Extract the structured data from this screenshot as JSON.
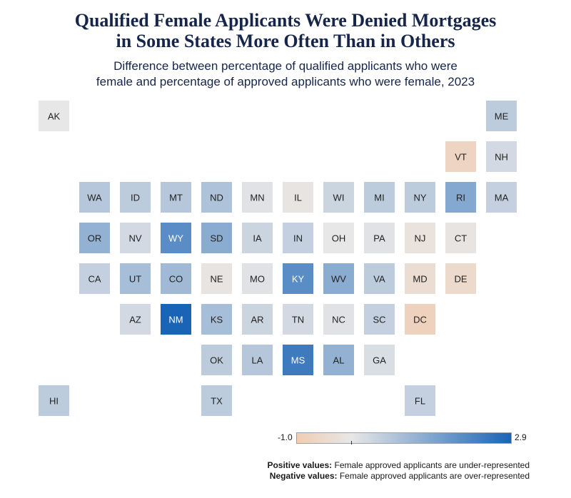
{
  "title": "Qualified Female Applicants Were Denied Mortgages\nin Some States More Often Than in Others",
  "subtitle": "Difference between percentage of qualified applicants who were\nfemale and percentage of approved applicants who were female, 2023",
  "legend": {
    "min_label": "-1.0",
    "max_label": "2.9",
    "colors": {
      "negative": "#f1cdb3",
      "neutral": "#e7e7e7",
      "positive": "#1a64b6"
    }
  },
  "notes": {
    "positive_label": "Positive values:",
    "positive_text": "Female approved applicants are under-represented",
    "negative_label": "Negative values:",
    "negative_text": "Female approved applicants are over-represented"
  },
  "chart_data": {
    "type": "heatmap",
    "value_range": [
      -1.0,
      2.9
    ],
    "tiles": [
      {
        "state": "AK",
        "col": 0,
        "row": 0,
        "value": 0.0
      },
      {
        "state": "ME",
        "col": 11,
        "row": 0,
        "value": 0.6
      },
      {
        "state": "VT",
        "col": 10,
        "row": 1,
        "value": -0.7
      },
      {
        "state": "NH",
        "col": 11,
        "row": 1,
        "value": 0.3
      },
      {
        "state": "WA",
        "col": 1,
        "row": 2,
        "value": 0.7
      },
      {
        "state": "ID",
        "col": 2,
        "row": 2,
        "value": 0.6
      },
      {
        "state": "MT",
        "col": 3,
        "row": 2,
        "value": 0.7
      },
      {
        "state": "ND",
        "col": 4,
        "row": 2,
        "value": 0.8
      },
      {
        "state": "MN",
        "col": 5,
        "row": 2,
        "value": 0.1
      },
      {
        "state": "IL",
        "col": 6,
        "row": 2,
        "value": -0.1
      },
      {
        "state": "WI",
        "col": 7,
        "row": 2,
        "value": 0.4
      },
      {
        "state": "MI",
        "col": 8,
        "row": 2,
        "value": 0.6
      },
      {
        "state": "NY",
        "col": 9,
        "row": 2,
        "value": 0.6
      },
      {
        "state": "RI",
        "col": 10,
        "row": 2,
        "value": 1.4
      },
      {
        "state": "MA",
        "col": 11,
        "row": 2,
        "value": 0.5
      },
      {
        "state": "OR",
        "col": 1,
        "row": 3,
        "value": 1.2
      },
      {
        "state": "NV",
        "col": 2,
        "row": 3,
        "value": 0.3
      },
      {
        "state": "WY",
        "col": 3,
        "row": 3,
        "value": 2.0
      },
      {
        "state": "SD",
        "col": 4,
        "row": 3,
        "value": 1.3
      },
      {
        "state": "IA",
        "col": 5,
        "row": 3,
        "value": 0.4
      },
      {
        "state": "IN",
        "col": 6,
        "row": 3,
        "value": 0.5
      },
      {
        "state": "OH",
        "col": 7,
        "row": 3,
        "value": 0.0
      },
      {
        "state": "PA",
        "col": 8,
        "row": 3,
        "value": 0.1
      },
      {
        "state": "NJ",
        "col": 9,
        "row": 3,
        "value": -0.2
      },
      {
        "state": "CT",
        "col": 10,
        "row": 3,
        "value": -0.1
      },
      {
        "state": "CA",
        "col": 1,
        "row": 4,
        "value": 0.5
      },
      {
        "state": "UT",
        "col": 2,
        "row": 4,
        "value": 0.9
      },
      {
        "state": "CO",
        "col": 3,
        "row": 4,
        "value": 1.0
      },
      {
        "state": "NE",
        "col": 4,
        "row": 4,
        "value": -0.1
      },
      {
        "state": "MO",
        "col": 5,
        "row": 4,
        "value": 0.1
      },
      {
        "state": "KY",
        "col": 6,
        "row": 4,
        "value": 2.0
      },
      {
        "state": "WV",
        "col": 7,
        "row": 4,
        "value": 1.3
      },
      {
        "state": "VA",
        "col": 8,
        "row": 4,
        "value": 0.6
      },
      {
        "state": "MD",
        "col": 9,
        "row": 4,
        "value": -0.4
      },
      {
        "state": "DE",
        "col": 10,
        "row": 4,
        "value": -0.5
      },
      {
        "state": "AZ",
        "col": 2,
        "row": 5,
        "value": 0.3
      },
      {
        "state": "NM",
        "col": 3,
        "row": 5,
        "value": 2.9
      },
      {
        "state": "KS",
        "col": 4,
        "row": 5,
        "value": 0.9
      },
      {
        "state": "AR",
        "col": 5,
        "row": 5,
        "value": 0.4
      },
      {
        "state": "TN",
        "col": 6,
        "row": 5,
        "value": 0.3
      },
      {
        "state": "NC",
        "col": 7,
        "row": 5,
        "value": 0.1
      },
      {
        "state": "SC",
        "col": 8,
        "row": 5,
        "value": 0.5
      },
      {
        "state": "DC",
        "col": 9,
        "row": 5,
        "value": -0.8
      },
      {
        "state": "OK",
        "col": 4,
        "row": 6,
        "value": 0.6
      },
      {
        "state": "LA",
        "col": 5,
        "row": 6,
        "value": 0.7
      },
      {
        "state": "MS",
        "col": 6,
        "row": 6,
        "value": 2.4
      },
      {
        "state": "AL",
        "col": 7,
        "row": 6,
        "value": 1.2
      },
      {
        "state": "GA",
        "col": 8,
        "row": 6,
        "value": 0.2
      },
      {
        "state": "HI",
        "col": 0,
        "row": 7,
        "value": 0.6
      },
      {
        "state": "TX",
        "col": 4,
        "row": 7,
        "value": 0.6
      },
      {
        "state": "FL",
        "col": 9,
        "row": 7,
        "value": 0.5
      }
    ]
  }
}
